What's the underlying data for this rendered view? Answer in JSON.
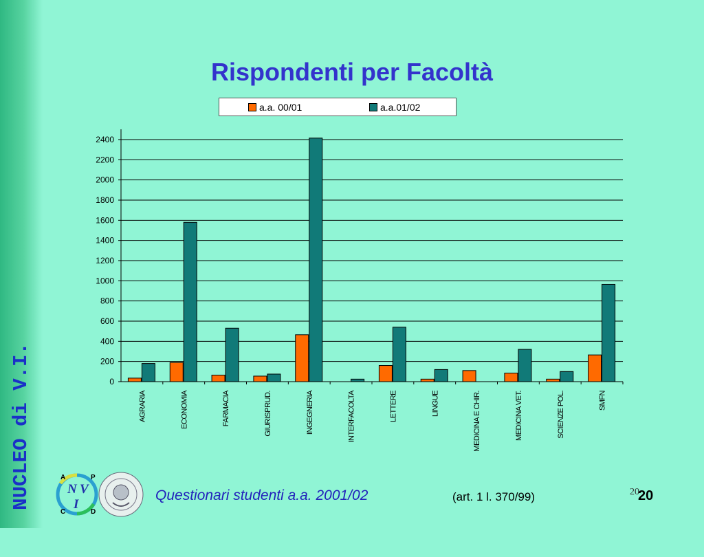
{
  "sidebar": {
    "label": "NUCLEO di V.I."
  },
  "colors": {
    "series1": "#ff6a00",
    "series2": "#117a78",
    "title": "#3333cc",
    "background": "#90f5d5"
  },
  "chart_data": {
    "type": "bar",
    "title": "Rispondenti per Facoltà",
    "categories": [
      "AGRARIA",
      "ECONOMIA",
      "FARMACIA",
      "GIURISPRUD.",
      "INGEGNERIA",
      "INTERFACOLTA",
      "LETTERE",
      "LINGUE",
      "MEDICINA E CHIR.",
      "MEDICINA VET.",
      "SCIENZE POL.",
      "SMFN"
    ],
    "series": [
      {
        "name": "a.a. 00/01",
        "values": [
          35,
          190,
          65,
          55,
          465,
          0,
          160,
          25,
          110,
          85,
          25,
          265
        ]
      },
      {
        "name": "a.a.01/02",
        "values": [
          180,
          1580,
          530,
          75,
          2415,
          25,
          540,
          120,
          0,
          320,
          100,
          965
        ]
      }
    ],
    "ylim": [
      0,
      2400
    ],
    "yticks": [
      0,
      200,
      400,
      600,
      800,
      1000,
      1200,
      1400,
      1600,
      1800,
      2000,
      2200,
      2400
    ],
    "grid": true,
    "legend": "top"
  },
  "footer": {
    "text": "Questionari  studenti a.a. 2001/02",
    "ref": "(art. 1 l. 370/99)",
    "page_small": "20",
    "page": "20"
  },
  "logo": {
    "letters": [
      "A",
      "P",
      "N",
      "V",
      "I",
      "C",
      "D"
    ],
    "seal": "SUBMAE DIGNITATIS 1343"
  }
}
